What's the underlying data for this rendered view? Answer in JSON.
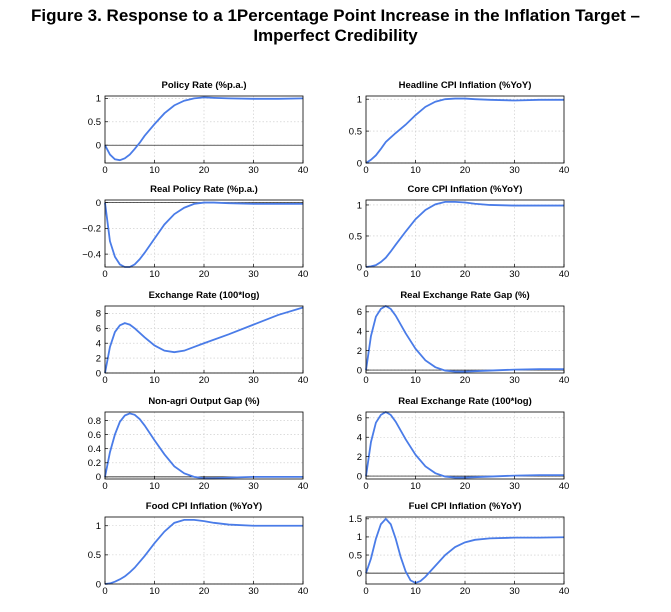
{
  "figure": {
    "title_line1": "Figure 3. Response to a 1Percentage Point Increase in the Inflation Target –",
    "title_line2": "Imperfect Credibility"
  },
  "colors": {
    "series": "#4a7ce8",
    "axes": "#000000",
    "grid": "#c8c8c8"
  },
  "chart_data": [
    {
      "type": "line",
      "title": "Policy Rate (%p.a.)",
      "xlim": [
        0,
        40
      ],
      "xticks": [
        0,
        10,
        20,
        30,
        40
      ],
      "ylim": [
        -0.38,
        1.05
      ],
      "yticks": [
        0,
        0.5,
        1
      ],
      "ytick_labels": [
        "0",
        "0.5",
        "1"
      ],
      "zero_line": true,
      "x": [
        0,
        1,
        2,
        3,
        4,
        5,
        6,
        7,
        8,
        10,
        12,
        14,
        16,
        18,
        20,
        22,
        25,
        30,
        35,
        40
      ],
      "y": [
        0.0,
        -0.2,
        -0.3,
        -0.32,
        -0.28,
        -0.2,
        -0.08,
        0.05,
        0.2,
        0.45,
        0.68,
        0.85,
        0.95,
        1.0,
        1.02,
        1.01,
        1.0,
        0.99,
        0.99,
        1.0
      ]
    },
    {
      "type": "line",
      "title": "Headline CPI Inflation (%YoY)",
      "xlim": [
        0,
        40
      ],
      "xticks": [
        0,
        10,
        20,
        30,
        40
      ],
      "ylim": [
        0,
        1.05
      ],
      "yticks": [
        0,
        0.5,
        1
      ],
      "ytick_labels": [
        "0",
        "0.5",
        "1"
      ],
      "zero_line": false,
      "x": [
        0,
        1,
        2,
        3,
        4,
        5,
        6,
        8,
        10,
        12,
        14,
        16,
        18,
        20,
        22,
        25,
        30,
        35,
        40
      ],
      "y": [
        0.0,
        0.05,
        0.12,
        0.22,
        0.33,
        0.4,
        0.47,
        0.6,
        0.75,
        0.88,
        0.96,
        1.0,
        1.01,
        1.01,
        1.0,
        0.99,
        0.98,
        0.99,
        0.99
      ]
    },
    {
      "type": "line",
      "title": "Real Policy Rate (%p.a.)",
      "xlim": [
        0,
        40
      ],
      "xticks": [
        0,
        10,
        20,
        30,
        40
      ],
      "ylim": [
        -0.5,
        0.02
      ],
      "yticks": [
        -0.4,
        -0.2,
        0
      ],
      "ytick_labels": [
        "-0.4",
        "-0.2",
        "0"
      ],
      "zero_line": true,
      "x": [
        0,
        0.5,
        1,
        2,
        3,
        4,
        5,
        6,
        7,
        8,
        10,
        12,
        14,
        16,
        18,
        20,
        22,
        25,
        30,
        35,
        40
      ],
      "y": [
        0.0,
        -0.15,
        -0.3,
        -0.42,
        -0.48,
        -0.5,
        -0.5,
        -0.48,
        -0.44,
        -0.39,
        -0.28,
        -0.17,
        -0.09,
        -0.04,
        -0.01,
        0.0,
        0.0,
        -0.005,
        -0.01,
        -0.01,
        -0.01
      ]
    },
    {
      "type": "line",
      "title": "Core CPI Inflation (%YoY)",
      "xlim": [
        0,
        40
      ],
      "xticks": [
        0,
        10,
        20,
        30,
        40
      ],
      "ylim": [
        0,
        1.08
      ],
      "yticks": [
        0,
        0.5,
        1
      ],
      "ytick_labels": [
        "0",
        "0.5",
        "1"
      ],
      "zero_line": false,
      "x": [
        0,
        1,
        2,
        3,
        4,
        5,
        6,
        8,
        10,
        12,
        14,
        16,
        18,
        20,
        22,
        25,
        30,
        35,
        40
      ],
      "y": [
        0.0,
        0.01,
        0.03,
        0.08,
        0.15,
        0.25,
        0.36,
        0.57,
        0.77,
        0.92,
        1.01,
        1.05,
        1.05,
        1.04,
        1.02,
        1.0,
        0.99,
        0.99,
        0.99
      ]
    },
    {
      "type": "line",
      "title": "Exchange Rate (100*log)",
      "xlim": [
        0,
        40
      ],
      "xticks": [
        0,
        10,
        20,
        30,
        40
      ],
      "ylim": [
        0,
        9
      ],
      "yticks": [
        0,
        2,
        4,
        6,
        8
      ],
      "ytick_labels": [
        "0",
        "2",
        "4",
        "6",
        "8"
      ],
      "zero_line": false,
      "x": [
        0,
        1,
        2,
        3,
        4,
        5,
        6,
        8,
        10,
        12,
        14,
        16,
        18,
        20,
        25,
        30,
        35,
        40
      ],
      "y": [
        0.0,
        3.5,
        5.5,
        6.4,
        6.7,
        6.5,
        6.0,
        4.8,
        3.7,
        3.0,
        2.8,
        3.0,
        3.5,
        4.0,
        5.2,
        6.5,
        7.8,
        8.8
      ]
    },
    {
      "type": "line",
      "title": "Real Exchange Rate Gap (%)",
      "xlim": [
        0,
        40
      ],
      "xticks": [
        0,
        10,
        20,
        30,
        40
      ],
      "ylim": [
        -0.3,
        6.6
      ],
      "yticks": [
        0,
        2,
        4,
        6
      ],
      "ytick_labels": [
        "0",
        "2",
        "4",
        "6"
      ],
      "zero_line": true,
      "x": [
        0,
        1,
        2,
        3,
        4,
        5,
        6,
        8,
        10,
        12,
        14,
        16,
        18,
        20,
        25,
        30,
        35,
        40
      ],
      "y": [
        0.0,
        3.5,
        5.5,
        6.3,
        6.6,
        6.3,
        5.6,
        3.8,
        2.2,
        1.0,
        0.3,
        -0.05,
        -0.15,
        -0.15,
        -0.05,
        0.05,
        0.1,
        0.1
      ]
    },
    {
      "type": "line",
      "title": "Non-agri Output Gap (%)",
      "xlim": [
        0,
        40
      ],
      "xticks": [
        0,
        10,
        20,
        30,
        40
      ],
      "ylim": [
        -0.03,
        0.92
      ],
      "yticks": [
        0,
        0.2,
        0.4,
        0.6,
        0.8
      ],
      "ytick_labels": [
        "0",
        "0.2",
        "0.4",
        "0.6",
        "0.8"
      ],
      "zero_line": true,
      "x": [
        0,
        1,
        2,
        3,
        4,
        5,
        6,
        7,
        8,
        10,
        12,
        14,
        16,
        18,
        20,
        22,
        25,
        30,
        35,
        40
      ],
      "y": [
        0.0,
        0.35,
        0.6,
        0.78,
        0.87,
        0.9,
        0.88,
        0.82,
        0.73,
        0.52,
        0.32,
        0.15,
        0.05,
        0.0,
        -0.02,
        -0.02,
        -0.01,
        0.0,
        0.0,
        0.0
      ]
    },
    {
      "type": "line",
      "title": "Real Exchange Rate (100*log)",
      "xlim": [
        0,
        40
      ],
      "xticks": [
        0,
        10,
        20,
        30,
        40
      ],
      "ylim": [
        -0.3,
        6.6
      ],
      "yticks": [
        0,
        2,
        4,
        6
      ],
      "ytick_labels": [
        "0",
        "2",
        "4",
        "6"
      ],
      "zero_line": true,
      "x": [
        0,
        1,
        2,
        3,
        4,
        5,
        6,
        8,
        10,
        12,
        14,
        16,
        18,
        20,
        25,
        30,
        35,
        40
      ],
      "y": [
        0.0,
        3.5,
        5.5,
        6.3,
        6.6,
        6.3,
        5.6,
        3.8,
        2.2,
        1.0,
        0.3,
        -0.05,
        -0.15,
        -0.15,
        -0.05,
        0.05,
        0.1,
        0.1
      ]
    },
    {
      "type": "line",
      "title": "Food CPI Inflation (%YoY)",
      "xlim": [
        0,
        40
      ],
      "xticks": [
        0,
        10,
        20,
        30,
        40
      ],
      "ylim": [
        0,
        1.15
      ],
      "yticks": [
        0,
        0.5,
        1
      ],
      "ytick_labels": [
        "0",
        "0.5",
        "1"
      ],
      "zero_line": false,
      "x": [
        0,
        1,
        2,
        3,
        4,
        5,
        6,
        8,
        10,
        12,
        14,
        16,
        18,
        20,
        22,
        25,
        30,
        35,
        40
      ],
      "y": [
        0.0,
        0.01,
        0.04,
        0.08,
        0.13,
        0.2,
        0.28,
        0.48,
        0.7,
        0.9,
        1.05,
        1.1,
        1.1,
        1.08,
        1.05,
        1.02,
        1.0,
        1.0,
        1.0
      ]
    },
    {
      "type": "line",
      "title": "Fuel CPI Inflation (%YoY)",
      "xlim": [
        0,
        40
      ],
      "xticks": [
        0,
        10,
        20,
        30,
        40
      ],
      "ylim": [
        -0.3,
        1.55
      ],
      "yticks": [
        0,
        0.5,
        1,
        1.5
      ],
      "ytick_labels": [
        "0",
        "0.5",
        "1",
        "1.5"
      ],
      "zero_line": true,
      "x": [
        0,
        1,
        2,
        3,
        4,
        5,
        6,
        7,
        8,
        9,
        10,
        11,
        12,
        14,
        16,
        18,
        20,
        22,
        25,
        30,
        35,
        40
      ],
      "y": [
        0.0,
        0.4,
        0.95,
        1.35,
        1.5,
        1.35,
        0.95,
        0.45,
        0.05,
        -0.2,
        -0.27,
        -0.22,
        -0.1,
        0.2,
        0.5,
        0.72,
        0.85,
        0.92,
        0.96,
        0.98,
        0.98,
        0.99
      ]
    }
  ]
}
